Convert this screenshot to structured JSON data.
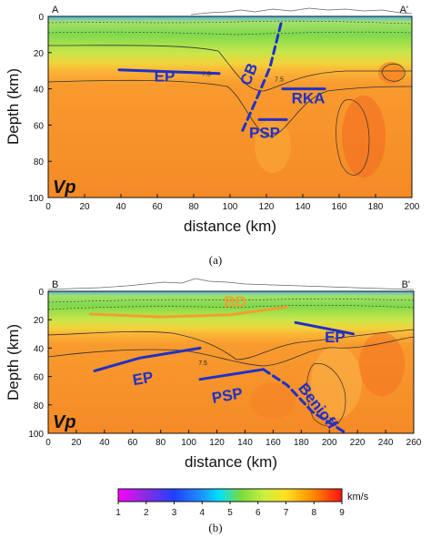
{
  "chart_data": [
    {
      "type": "heatmap",
      "panel": "(a)",
      "profile_start": "A",
      "profile_end": "A'",
      "xlabel": "distance (km)",
      "ylabel": "Depth (km)",
      "xlim": [
        0,
        200
      ],
      "ylim": [
        100,
        0
      ],
      "x_ticks": [
        0,
        20,
        40,
        60,
        80,
        100,
        120,
        140,
        160,
        180,
        200
      ],
      "y_ticks": [
        0,
        20,
        40,
        60,
        80,
        100
      ],
      "field_label": "Vp",
      "contour_labels": [
        {
          "text": "7.5",
          "x": 87,
          "depth": 33
        },
        {
          "text": "7.5",
          "x": 127,
          "depth": 36
        }
      ],
      "annotations": [
        {
          "text": "EP",
          "x": 64,
          "depth": 36,
          "color": "#2030c8",
          "rotate": 0,
          "size": 17
        },
        {
          "text": "CB",
          "x": 113,
          "depth": 33,
          "color": "#2030c8",
          "rotate": -68,
          "size": 17
        },
        {
          "text": "RKA",
          "x": 143,
          "depth": 48,
          "color": "#2030c8",
          "rotate": 0,
          "size": 17
        },
        {
          "text": "PSP",
          "x": 119,
          "depth": 67,
          "color": "#2030c8",
          "rotate": 0,
          "size": 17
        }
      ],
      "structures": [
        {
          "name": "EP",
          "style": "solid",
          "points": [
            [
              39,
              29.5
            ],
            [
              94,
              31.5
            ]
          ]
        },
        {
          "name": "RKA",
          "style": "solid",
          "points": [
            [
              129,
              40
            ],
            [
              152,
              40
            ]
          ]
        },
        {
          "name": "PSP",
          "style": "solid",
          "points": [
            [
              116,
              57
            ],
            [
              131,
              57
            ]
          ]
        },
        {
          "name": "CB",
          "style": "dashed",
          "points": [
            [
              128,
              4
            ],
            [
              122,
              28
            ],
            [
              114,
              47
            ],
            [
              106,
              65
            ]
          ]
        }
      ]
    },
    {
      "type": "heatmap",
      "panel": "(b)",
      "profile_start": "B",
      "profile_end": "B'",
      "xlabel": "distance (km)",
      "ylabel": "Depth (km)",
      "xlim": [
        0,
        260
      ],
      "ylim": [
        100,
        0
      ],
      "x_ticks": [
        0,
        20,
        40,
        60,
        80,
        100,
        120,
        140,
        160,
        180,
        200,
        220,
        240,
        260
      ],
      "y_ticks": [
        0,
        20,
        40,
        60,
        80,
        100
      ],
      "field_label": "Vp",
      "contour_labels": [
        {
          "text": "7.5",
          "x": 110,
          "depth": 52
        }
      ],
      "annotations": [
        {
          "text": "BD",
          "x": 133,
          "depth": 11,
          "color": "#f0a030",
          "rotate": 0,
          "size": 17
        },
        {
          "text": "EP",
          "x": 68,
          "depth": 65,
          "color": "#2030c8",
          "rotate": -10,
          "size": 17
        },
        {
          "text": "EP",
          "x": 204,
          "depth": 36,
          "color": "#2030c8",
          "rotate": 0,
          "size": 17
        },
        {
          "text": "PSP",
          "x": 128,
          "depth": 77,
          "color": "#2030c8",
          "rotate": -10,
          "size": 17
        },
        {
          "text": "Benioff",
          "x": 189,
          "depth": 83,
          "color": "#2030c8",
          "rotate": 52,
          "size": 17
        }
      ],
      "structures": [
        {
          "name": "BD",
          "style": "solid",
          "color": "#f0a030",
          "points": [
            [
              30,
              16
            ],
            [
              80,
              18
            ],
            [
              130,
              16.5
            ],
            [
              170,
              11
            ]
          ]
        },
        {
          "name": "EP",
          "style": "solid",
          "points": [
            [
              33,
              56
            ],
            [
              65,
              47
            ],
            [
              108,
              40
            ]
          ]
        },
        {
          "name": "EP",
          "style": "solid",
          "points": [
            [
              176,
              22
            ],
            [
              217,
              30
            ]
          ]
        },
        {
          "name": "PSP",
          "style": "solid",
          "points": [
            [
              108,
              62
            ],
            [
              153,
              55
            ]
          ]
        },
        {
          "name": "Benioff",
          "style": "dashed",
          "points": [
            [
              153,
              55
            ],
            [
              170,
              66
            ],
            [
              188,
              85
            ],
            [
              212,
              100
            ]
          ]
        }
      ]
    }
  ],
  "colorbar": {
    "unit": "km/s",
    "vmin": 1,
    "vmax": 9,
    "ticks": [
      1,
      2,
      3,
      4,
      5,
      6,
      7,
      8,
      9
    ]
  }
}
